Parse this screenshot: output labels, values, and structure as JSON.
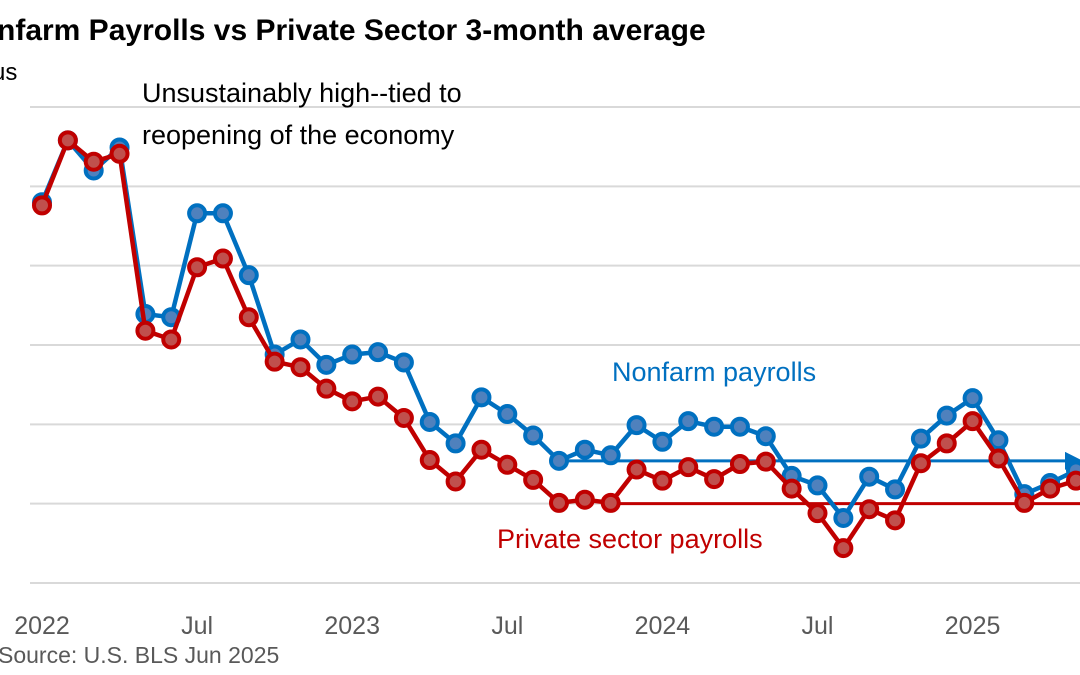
{
  "chart_data": {
    "type": "line",
    "title": "nfarm Payrolls vs Private Sector 3-month  average",
    "ylabel": "us",
    "source": "Source: U.S. BLS Jun 2025",
    "ylim": [
      0,
      600
    ],
    "grid": true,
    "x_ticks": [
      {
        "index": 0,
        "label": "2022"
      },
      {
        "index": 6,
        "label": "Jul"
      },
      {
        "index": 12,
        "label": "2023"
      },
      {
        "index": 18,
        "label": "Jul"
      },
      {
        "index": 24,
        "label": "2024"
      },
      {
        "index": 30,
        "label": "Jul"
      },
      {
        "index": 36,
        "label": "2025"
      }
    ],
    "x": [
      "2022-01",
      "2022-02",
      "2022-03",
      "2022-04",
      "2022-05",
      "2022-06",
      "2022-07",
      "2022-08",
      "2022-09",
      "2022-10",
      "2022-11",
      "2022-12",
      "2023-01",
      "2023-02",
      "2023-03",
      "2023-04",
      "2023-05",
      "2023-06",
      "2023-07",
      "2023-08",
      "2023-09",
      "2023-10",
      "2023-11",
      "2023-12",
      "2024-01",
      "2024-02",
      "2024-03",
      "2024-04",
      "2024-05",
      "2024-06",
      "2024-07",
      "2024-08",
      "2024-09",
      "2024-10",
      "2024-11",
      "2024-12",
      "2025-01",
      "2025-02",
      "2025-03",
      "2025-04",
      "2025-05"
    ],
    "series": [
      {
        "name": "Nonfarm payrolls",
        "color": "#0070c0",
        "fill": "#4f81bd",
        "values": [
          480,
          558,
          520,
          549,
          339,
          335,
          466,
          466,
          388,
          288,
          307,
          275,
          288,
          291,
          278,
          203,
          176,
          234,
          213,
          186,
          154,
          168,
          161,
          199,
          178,
          204,
          197,
          197,
          185,
          135,
          123,
          82,
          134,
          118,
          182,
          211,
          233,
          180,
          112,
          126,
          142
        ]
      },
      {
        "name": "Private sector payrolls",
        "color": "#c00000",
        "fill": "#c0504d",
        "values": [
          476,
          558,
          531,
          541,
          318,
          307,
          398,
          409,
          335,
          279,
          272,
          245,
          229,
          235,
          208,
          155,
          128,
          168,
          149,
          130,
          101,
          105,
          101,
          143,
          129,
          146,
          131,
          150,
          153,
          119,
          88,
          44,
          93,
          79,
          151,
          176,
          204,
          157,
          101,
          119,
          129
        ]
      }
    ],
    "reference_lines": [
      {
        "series": "Nonfarm payrolls",
        "value": 154,
        "from": "2023-09",
        "arrow": true,
        "color": "#0070c0"
      },
      {
        "series": "Private sector payrolls",
        "value": 100,
        "from": "2023-11",
        "arrow": false,
        "color": "#c00000"
      }
    ],
    "annotations": {
      "reopening_line1": "Unsustainably high--tied to",
      "reopening_line2": "reopening of the economy",
      "nonfarm_label": "Nonfarm payrolls",
      "private_label": "Private sector payrolls"
    }
  }
}
